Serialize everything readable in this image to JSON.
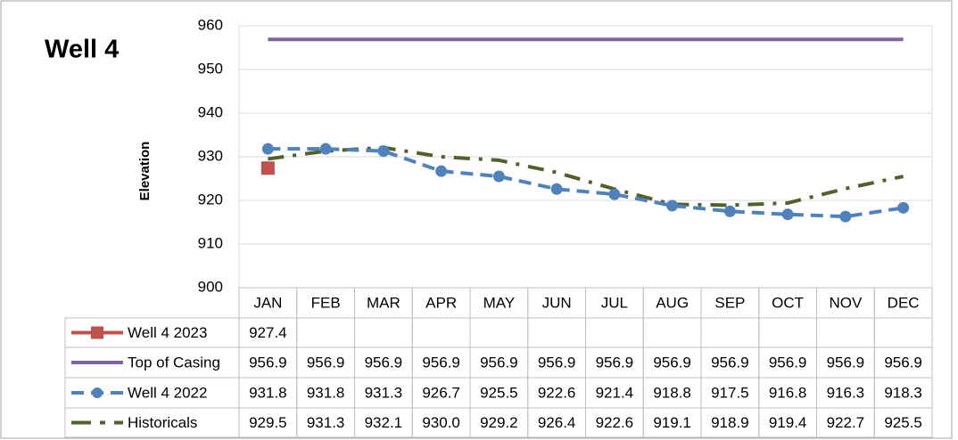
{
  "chart_data": {
    "type": "line",
    "title": "Well 4",
    "y_label": "Elevation",
    "categories": [
      "JAN",
      "FEB",
      "MAR",
      "APR",
      "MAY",
      "JUN",
      "JUL",
      "AUG",
      "SEP",
      "OCT",
      "NOV",
      "DEC"
    ],
    "ylim": [
      900,
      960
    ],
    "yticks": [
      900,
      910,
      920,
      930,
      940,
      950,
      960
    ],
    "grid": true,
    "series": [
      {
        "name": "Well 4 2023",
        "color": "#c0504d",
        "marker": "square",
        "dash": "solid",
        "values": [
          927.4,
          null,
          null,
          null,
          null,
          null,
          null,
          null,
          null,
          null,
          null,
          null
        ],
        "value_labels": [
          "927.4",
          null,
          null,
          null,
          null,
          null,
          null,
          null,
          null,
          null,
          null,
          null
        ]
      },
      {
        "name": "Top of Casing",
        "color": "#8064a2",
        "marker": "none",
        "dash": "solid",
        "values": [
          956.9,
          956.9,
          956.9,
          956.9,
          956.9,
          956.9,
          956.9,
          956.9,
          956.9,
          956.9,
          956.9,
          956.9
        ],
        "value_labels": [
          "956.9",
          "956.9",
          "956.9",
          "956.9",
          "956.9",
          "956.9",
          "956.9",
          "956.9",
          "956.9",
          "956.9",
          "956.9",
          "956.9"
        ]
      },
      {
        "name": "Well 4 2022",
        "color": "#4f81bd",
        "marker": "circle",
        "dash": "dash",
        "values": [
          931.8,
          931.8,
          931.3,
          926.7,
          925.5,
          922.6,
          921.4,
          918.8,
          917.5,
          916.8,
          916.3,
          918.3
        ],
        "value_labels": [
          "931.8",
          "931.8",
          "931.3",
          "926.7",
          "925.5",
          "922.6",
          "921.4",
          "918.8",
          "917.5",
          "916.8",
          "916.3",
          "918.3"
        ]
      },
      {
        "name": "Historicals",
        "color": "#4f6228",
        "marker": "none",
        "dash": "dashdot",
        "values": [
          929.5,
          931.3,
          932.1,
          930.0,
          929.2,
          926.4,
          922.6,
          919.1,
          918.9,
          919.4,
          922.7,
          925.5
        ],
        "value_labels": [
          "929.5",
          "931.3",
          "932.1",
          "930.0",
          "929.2",
          "926.4",
          "922.6",
          "919.1",
          "918.9",
          "919.4",
          "922.7",
          "925.5"
        ]
      }
    ]
  }
}
